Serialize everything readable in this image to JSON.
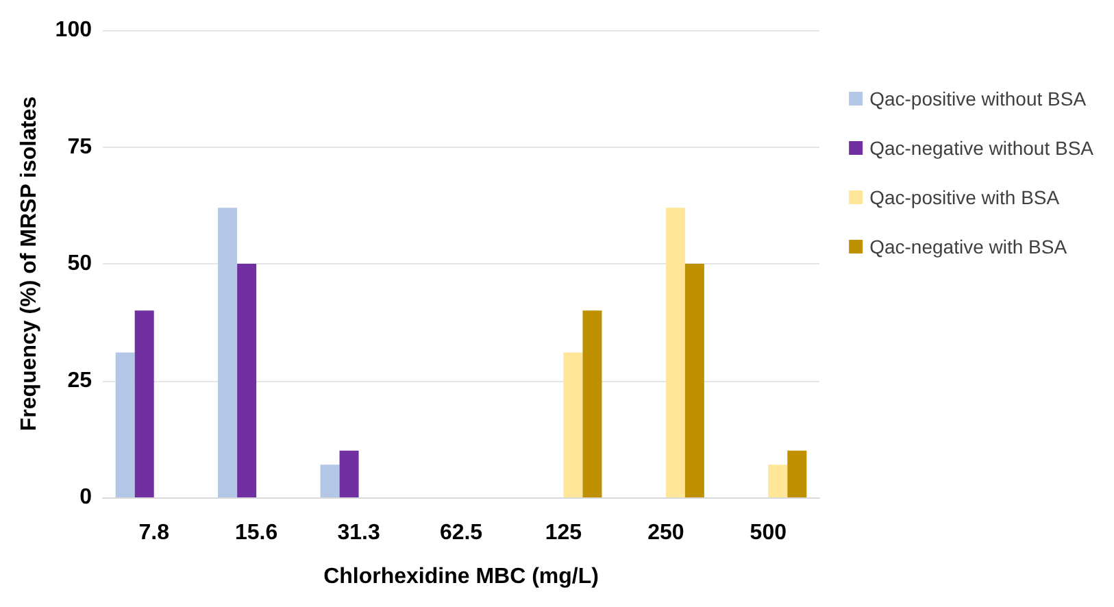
{
  "chart_data": {
    "type": "bar",
    "xlabel": "Chlorhexidine MBC (mg/L)",
    "ylabel": "Frequency (%) of MRSP isolates",
    "categories": [
      "7.8",
      "15.6",
      "31.3",
      "62.5",
      "125",
      "250",
      "500"
    ],
    "series": [
      {
        "name": "Qac-positive without BSA",
        "color": "#b4c7e7",
        "values": [
          31,
          62,
          7,
          0,
          0,
          0,
          0
        ]
      },
      {
        "name": "Qac-negative without BSA",
        "color": "#7030a0",
        "values": [
          40,
          50,
          10,
          0,
          0,
          0,
          0
        ]
      },
      {
        "name": "Qac-positive with BSA",
        "color": "#ffe699",
        "values": [
          0,
          0,
          0,
          0,
          31,
          62,
          7
        ]
      },
      {
        "name": "Qac-negative with BSA",
        "color": "#bf9000",
        "values": [
          0,
          0,
          0,
          0,
          40,
          50,
          10
        ]
      }
    ],
    "ylim": [
      0,
      100
    ],
    "yticks": [
      0,
      25,
      50,
      75,
      100
    ],
    "grid": "y",
    "legend": "right"
  }
}
